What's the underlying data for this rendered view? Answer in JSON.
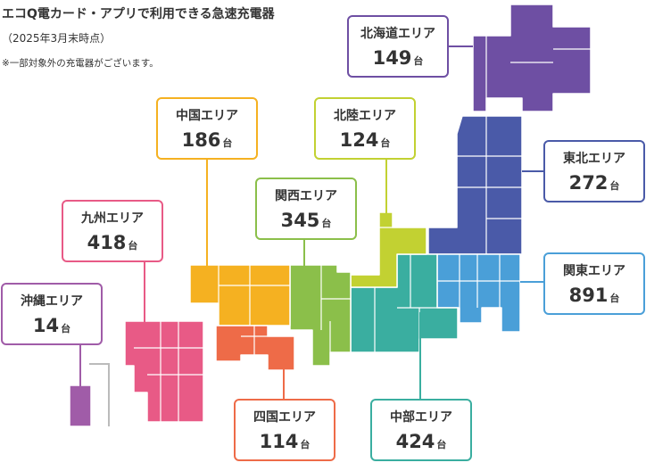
{
  "header": {
    "title": "エコQ電カード・アプリで利用できる急速充電器",
    "subtitle": "（2025年3月末時点）",
    "note": "※一部対象外の充電器がございます。"
  },
  "unit": "台",
  "regions": [
    {
      "name": "北海道エリア",
      "count": 149,
      "color": "#6e4fa3"
    },
    {
      "name": "東北エリア",
      "count": 272,
      "color": "#4a5aa8"
    },
    {
      "name": "関東エリア",
      "count": 891,
      "color": "#4a9fd8"
    },
    {
      "name": "中部エリア",
      "count": 424,
      "color": "#3aaea0"
    },
    {
      "name": "北陸エリア",
      "count": 124,
      "color": "#c2d132"
    },
    {
      "name": "関西エリア",
      "count": 345,
      "color": "#8bbf4a"
    },
    {
      "name": "中国エリア",
      "count": 186,
      "color": "#f5b121"
    },
    {
      "name": "四国エリア",
      "count": 114,
      "color": "#ee6b48"
    },
    {
      "name": "九州エリア",
      "count": 418,
      "color": "#e85a86"
    },
    {
      "name": "沖縄エリア",
      "count": 14,
      "color": "#a05ca8"
    }
  ]
}
